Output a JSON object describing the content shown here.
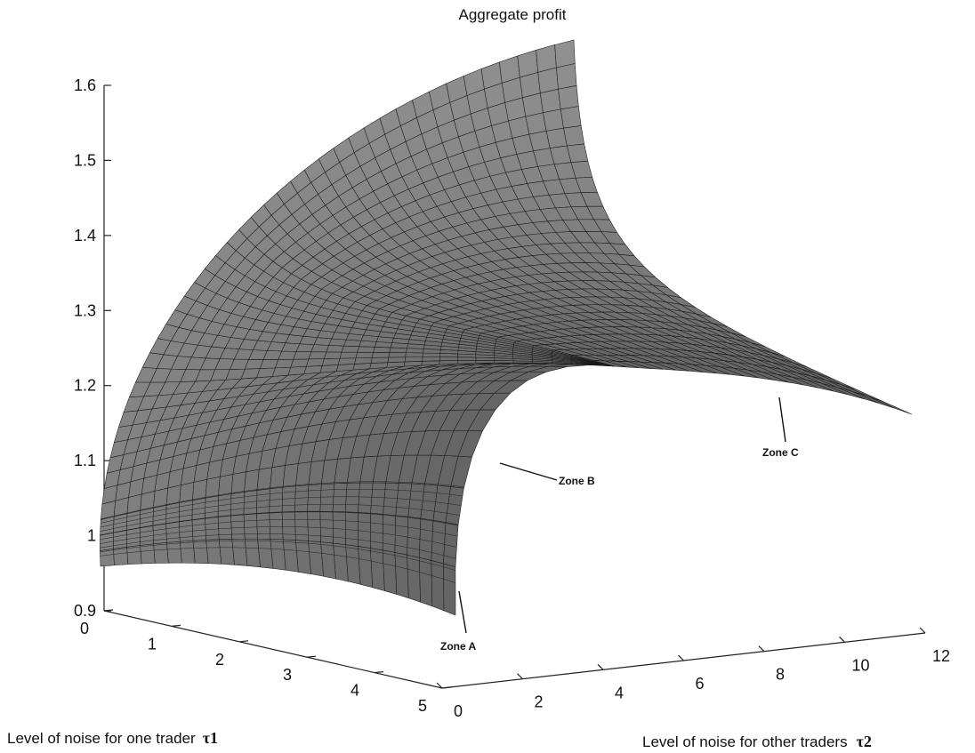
{
  "chart_data": {
    "type": "surface",
    "title": "Aggregate profit",
    "xlabel": "Level of noise for one trader",
    "xlabel_symbol": "τ1",
    "ylabel": "Level of noise for other traders",
    "ylabel_symbol": "τ2",
    "x_ticks": [
      "0",
      "1",
      "2",
      "3",
      "4",
      "5"
    ],
    "y_ticks": [
      "0",
      "2",
      "4",
      "6",
      "8",
      "10",
      "12"
    ],
    "z_ticks": [
      "0.9",
      "1",
      "1.1",
      "1.2",
      "1.3",
      "1.4",
      "1.5",
      "1.6"
    ],
    "xlim": [
      0,
      5
    ],
    "ylim": [
      0,
      12
    ],
    "zlim": [
      0.9,
      1.65
    ],
    "grid": false,
    "surface_color": "#7a7a7a",
    "mesh_color": "#1a1a1a",
    "corner_values": [
      {
        "tau1": 0,
        "tau2": 0,
        "profit": 0.96
      },
      {
        "tau1": 5,
        "tau2": 0,
        "profit": 0.9
      },
      {
        "tau1": 0,
        "tau2": 12,
        "profit": 1.63
      },
      {
        "tau1": 5,
        "tau2": 12,
        "profit": 1.16
      }
    ],
    "annotations": [
      "Zone A",
      "Zone B",
      "Zone C"
    ]
  }
}
